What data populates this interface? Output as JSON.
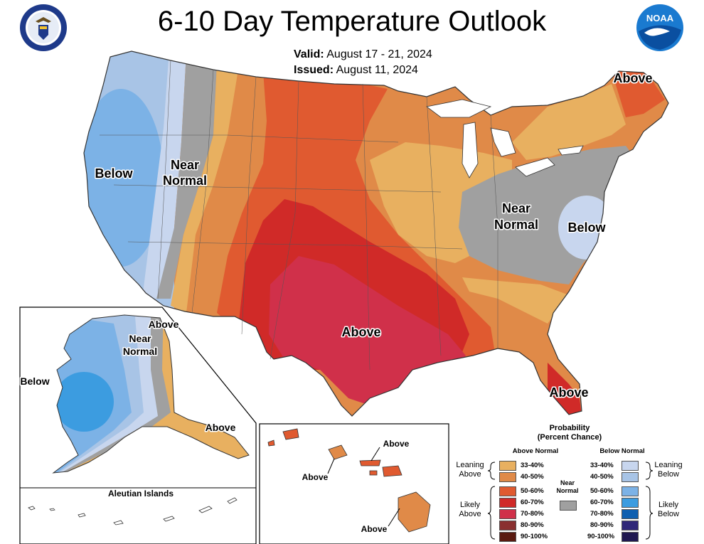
{
  "title": "6-10 Day Temperature Outlook",
  "valid_label": "Valid:",
  "valid_value": "August 17 - 21, 2024",
  "issued_label": "Issued:",
  "issued_value": "August 11, 2024",
  "logos": {
    "left": "Department of Commerce seal",
    "right": "NOAA"
  },
  "seal_text": "DEPARTMENT OF COMMERCE · UNITED STATES OF AMERICA",
  "noaa_text": "NOAA",
  "map_labels": {
    "conus_below": "Below",
    "conus_near_normal": [
      "Near",
      "Normal"
    ],
    "northeast_above": "Above",
    "east_near_normal": [
      "Near",
      "Normal"
    ],
    "east_below": "Below",
    "texas_above": "Above",
    "florida_above": "Above"
  },
  "alaska_labels": {
    "above_north": "Above",
    "near_normal": [
      "Near",
      "Normal"
    ],
    "below": "Below",
    "above_south": "Above"
  },
  "aleutian_title": "Aleutian Islands",
  "hawaii_labels": {
    "a1": "Above",
    "a2": "Above",
    "a3": "Above"
  },
  "legend": {
    "title": [
      "Probability",
      "(Percent Chance)"
    ],
    "above_header": "Above Normal",
    "below_header": "Below Normal",
    "near_normal": [
      "Near",
      "Normal"
    ],
    "leaning_above": [
      "Leaning",
      "Above"
    ],
    "likely_above": [
      "Likely",
      "Above"
    ],
    "leaning_below": [
      "Leaning",
      "Below"
    ],
    "likely_below": [
      "Likely",
      "Below"
    ],
    "ranges": [
      "33-40%",
      "40-50%",
      "50-60%",
      "60-70%",
      "70-80%",
      "80-90%",
      "90-100%"
    ],
    "above_colors": [
      "#e8b060",
      "#e08a48",
      "#e05a30",
      "#d02a28",
      "#d0304a",
      "#8a3030",
      "#5a1a10"
    ],
    "below_colors": [
      "#c8d6ee",
      "#a8c4e6",
      "#7cb2e6",
      "#3c9ce0",
      "#1060b0",
      "#302878",
      "#201850"
    ],
    "near_color": "#a0a0a0"
  }
}
